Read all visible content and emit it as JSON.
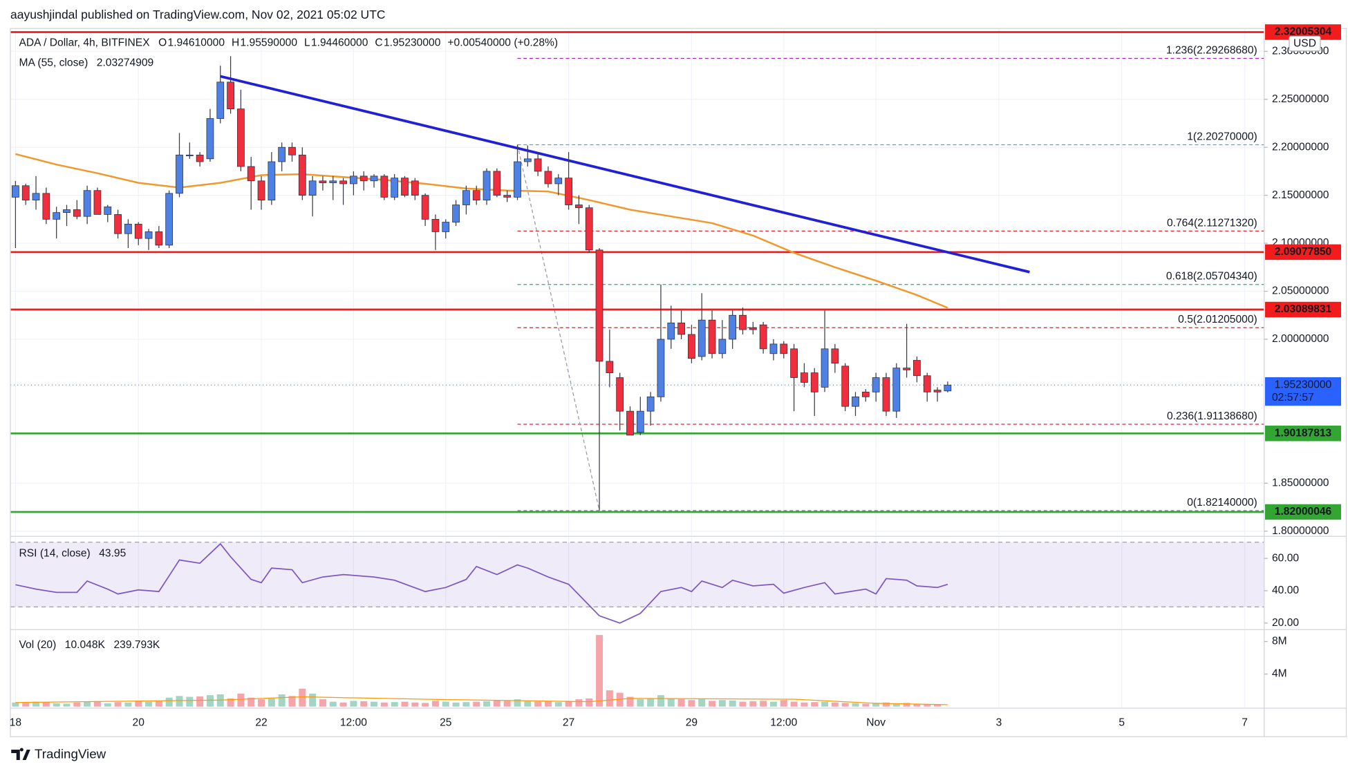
{
  "header": "aayushjindal published on TradingView.com, Nov 02, 2021 05:02 UTC",
  "brand": "TradingView",
  "chart_data": [
    {
      "type": "candlestick",
      "symbol": "ADA / Dollar, 4h, BITFINEX",
      "ohlc_labels": [
        "O",
        "H",
        "L",
        "C"
      ],
      "ohlc_values": [
        "1.94610000",
        "1.95590000",
        "1.94460000",
        "1.95230000"
      ],
      "change": "+0.00540000 (+0.28%)",
      "up_color": "#4f80e3",
      "down_color": "#ef2f3d",
      "ohlc": [
        [
          2.148,
          2.165,
          2.095,
          2.16
        ],
        [
          2.16,
          2.162,
          2.14,
          2.145
        ],
        [
          2.145,
          2.17,
          2.135,
          2.152
        ],
        [
          2.152,
          2.158,
          2.12,
          2.125
        ],
        [
          2.125,
          2.138,
          2.105,
          2.132
        ],
        [
          2.132,
          2.14,
          2.118,
          2.135
        ],
        [
          2.135,
          2.145,
          2.125,
          2.128
        ],
        [
          2.128,
          2.16,
          2.12,
          2.155
        ],
        [
          2.155,
          2.158,
          2.13,
          2.13
        ],
        [
          2.13,
          2.14,
          2.122,
          2.138
        ],
        [
          2.13,
          2.135,
          2.105,
          2.11
        ],
        [
          2.11,
          2.125,
          2.095,
          2.12
        ],
        [
          2.12,
          2.122,
          2.098,
          2.105
        ],
        [
          2.105,
          2.115,
          2.093,
          2.112
        ],
        [
          2.112,
          2.118,
          2.095,
          2.098
        ],
        [
          2.098,
          2.155,
          2.095,
          2.152
        ],
        [
          2.152,
          2.215,
          2.148,
          2.192
        ],
        [
          2.192,
          2.205,
          2.188,
          2.192
        ],
        [
          2.192,
          2.195,
          2.18,
          2.185
        ],
        [
          2.188,
          2.24,
          2.185,
          2.23
        ],
        [
          2.23,
          2.285,
          2.225,
          2.268
        ],
        [
          2.268,
          2.295,
          2.235,
          2.24
        ],
        [
          2.24,
          2.26,
          2.175,
          2.18
        ],
        [
          2.18,
          2.19,
          2.135,
          2.165
        ],
        [
          2.165,
          2.17,
          2.135,
          2.145
        ],
        [
          2.145,
          2.195,
          2.14,
          2.185
        ],
        [
          2.185,
          2.205,
          2.175,
          2.2
        ],
        [
          2.2,
          2.205,
          2.185,
          2.192
        ],
        [
          2.192,
          2.2,
          2.145,
          2.15
        ],
        [
          2.15,
          2.17,
          2.128,
          2.165
        ],
        [
          2.165,
          2.17,
          2.155,
          2.163
        ],
        [
          2.163,
          2.17,
          2.145,
          2.165
        ],
        [
          2.165,
          2.168,
          2.14,
          2.162
        ],
        [
          2.162,
          2.175,
          2.15,
          2.17
        ],
        [
          2.17,
          2.175,
          2.155,
          2.165
        ],
        [
          2.165,
          2.172,
          2.158,
          2.17
        ],
        [
          2.17,
          2.172,
          2.145,
          2.148
        ],
        [
          2.148,
          2.172,
          2.145,
          2.168
        ],
        [
          2.168,
          2.17,
          2.148,
          2.15
        ],
        [
          2.165,
          2.168,
          2.145,
          2.15
        ],
        [
          2.15,
          2.152,
          2.118,
          2.125
        ],
        [
          2.125,
          2.13,
          2.093,
          2.112
        ],
        [
          2.112,
          2.125,
          2.105,
          2.122
        ],
        [
          2.122,
          2.145,
          2.118,
          2.14
        ],
        [
          2.14,
          2.16,
          2.13,
          2.155
        ],
        [
          2.155,
          2.16,
          2.14,
          2.145
        ],
        [
          2.145,
          2.178,
          2.14,
          2.175
        ],
        [
          2.175,
          2.178,
          2.148,
          2.15
        ],
        [
          2.15,
          2.155,
          2.143,
          2.148
        ],
        [
          2.148,
          2.2027,
          2.145,
          2.185
        ],
        [
          2.185,
          2.202,
          2.18,
          2.188
        ],
        [
          2.188,
          2.195,
          2.17,
          2.175
        ],
        [
          2.175,
          2.18,
          2.158,
          2.162
        ],
        [
          2.162,
          2.172,
          2.15,
          2.168
        ],
        [
          2.168,
          2.195,
          2.135,
          2.14
        ],
        [
          2.14,
          2.15,
          2.12,
          2.137
        ],
        [
          2.137,
          2.14,
          2.09,
          2.093
        ],
        [
          2.093,
          2.095,
          1.8214,
          1.977
        ],
        [
          1.977,
          2.01,
          1.95,
          1.965
        ],
        [
          1.96,
          1.965,
          1.905,
          1.925
        ],
        [
          1.925,
          1.93,
          1.9,
          1.9
        ],
        [
          1.903,
          1.94,
          1.9,
          1.925
        ],
        [
          1.925,
          1.945,
          1.91,
          1.94
        ],
        [
          1.94,
          2.057,
          1.935,
          2.0
        ],
        [
          2.0,
          2.035,
          1.99,
          2.017
        ],
        [
          2.017,
          2.03,
          2.0,
          2.005
        ],
        [
          2.005,
          2.015,
          1.975,
          1.98
        ],
        [
          1.982,
          2.048,
          1.978,
          2.02
        ],
        [
          2.02,
          2.03,
          1.98,
          1.985
        ],
        [
          1.985,
          2.02,
          1.98,
          2.0
        ],
        [
          2.0,
          2.03,
          1.99,
          2.025
        ],
        [
          2.025,
          2.033,
          2.005,
          2.01
        ],
        [
          2.012,
          2.018,
          2.005,
          2.01
        ],
        [
          2.015,
          2.018,
          1.985,
          1.99
        ],
        [
          1.985,
          2.0,
          1.978,
          1.995
        ],
        [
          1.995,
          1.998,
          1.98,
          1.985
        ],
        [
          1.99,
          1.995,
          1.925,
          1.96
        ],
        [
          1.965,
          1.975,
          1.95,
          1.955
        ],
        [
          1.965,
          1.97,
          1.92,
          1.945
        ],
        [
          1.95,
          2.03,
          1.945,
          1.99
        ],
        [
          1.99,
          1.995,
          1.965,
          1.975
        ],
        [
          1.972,
          1.975,
          1.925,
          1.93
        ],
        [
          1.93,
          1.945,
          1.92,
          1.94
        ],
        [
          1.945,
          1.948,
          1.935,
          1.94
        ],
        [
          1.945,
          1.965,
          1.935,
          1.96
        ],
        [
          1.96,
          1.965,
          1.92,
          1.925
        ],
        [
          1.925,
          1.975,
          1.918,
          1.97
        ],
        [
          1.97,
          2.016,
          1.96,
          1.968
        ],
        [
          1.978,
          1.982,
          1.955,
          1.962
        ],
        [
          1.962,
          1.965,
          1.935,
          1.945
        ],
        [
          1.947,
          1.95,
          1.935,
          1.945
        ],
        [
          1.9461,
          1.9559,
          1.9446,
          1.9523
        ]
      ],
      "ma": {
        "name": "MA (55, close)",
        "label": "2.03274909",
        "color": "#f0982c",
        "x": [
          0,
          4,
          8,
          12,
          16,
          20,
          24,
          28,
          32,
          36,
          40,
          44,
          48,
          52,
          56,
          60,
          64,
          68,
          72,
          76,
          80,
          84,
          88,
          91
        ],
        "values": [
          2.193,
          2.182,
          2.173,
          2.163,
          2.158,
          2.163,
          2.171,
          2.172,
          2.169,
          2.166,
          2.162,
          2.157,
          2.155,
          2.154,
          2.145,
          2.135,
          2.128,
          2.121,
          2.108,
          2.09,
          2.075,
          2.061,
          2.046,
          2.03274909
        ]
      },
      "trendline": {
        "x": [
          20,
          99
        ],
        "values": [
          2.274,
          2.07
        ],
        "color": "#2020d6"
      },
      "levels": [
        {
          "value": 2.32005304,
          "label": "2.32005304",
          "color": "#f21c1c"
        },
        {
          "value": 2.0907785,
          "label": "2.09077850",
          "color": "#f21c1c"
        },
        {
          "value": 2.03089831,
          "label": "2.03089831",
          "color": "#f21c1c"
        },
        {
          "value": 1.90187813,
          "label": "1.90187813",
          "color": "#33a532"
        },
        {
          "value": 1.82000046,
          "label": "1.82000046",
          "color": "#33a532"
        }
      ],
      "fib": {
        "anchor_x": [
          49,
          57
        ],
        "levels": [
          {
            "value": 2.2926868,
            "label": "1.236(2.29268680)",
            "color": "#9c27b0"
          },
          {
            "value": 2.2027,
            "label": "1(2.20270000)",
            "color": "#4fa3d9"
          },
          {
            "value": 2.1127132,
            "label": "0.764(2.11271320)",
            "color": "#e5232d"
          },
          {
            "value": 2.0570434,
            "label": "0.618(2.05704340)",
            "color": "#22b07d"
          },
          {
            "value": 2.01205,
            "label": "0.5(2.01205000)",
            "color": "#a33b3b"
          },
          {
            "value": 1.9113868,
            "label": "0.236(1.91138680)",
            "color": "#e5232d"
          },
          {
            "value": 1.8214,
            "label": "0(1.82140000)",
            "color": "#787b86"
          }
        ]
      },
      "last": {
        "value": 1.9523,
        "label": "1.95230000",
        "countdown": "02:57:57",
        "color": "#2962ff"
      },
      "currency": "USD",
      "xlim": [
        -0.5,
        121.9
      ],
      "ylim": [
        1.7955,
        2.3238
      ],
      "yticks": [
        {
          "value": 2.3,
          "label": "2.30000000"
        },
        {
          "value": 2.25,
          "label": "2.25000000"
        },
        {
          "value": 2.2,
          "label": "2.20000000"
        },
        {
          "value": 2.15,
          "label": "2.15000000"
        },
        {
          "value": 2.1,
          "label": "2.10000000"
        },
        {
          "value": 2.05,
          "label": "2.05000000"
        },
        {
          "value": 2.0,
          "label": "2.00000000"
        },
        {
          "value": 1.85,
          "label": "1.85000000"
        },
        {
          "value": 1.8,
          "label": "1.80000000"
        }
      ],
      "grid": true
    },
    {
      "type": "line",
      "name": "RSI (14, close)",
      "color": "#7e57c2",
      "band": [
        30,
        70
      ],
      "x": [
        0,
        2,
        4,
        6,
        7,
        9,
        10,
        12,
        14,
        16,
        18,
        20,
        21,
        23,
        24,
        25,
        27,
        28,
        30,
        32,
        35,
        37,
        40,
        42,
        44,
        45,
        47,
        49,
        50,
        52,
        54,
        57,
        59,
        61,
        63,
        65,
        66,
        67,
        69,
        70,
        72,
        74,
        75,
        77,
        79,
        80,
        83,
        84,
        85,
        87,
        88,
        90,
        91
      ],
      "values": [
        43.7,
        41,
        39,
        39,
        46,
        41,
        38,
        40.5,
        39.5,
        59,
        57,
        69,
        61,
        47,
        45,
        54,
        53,
        45,
        48.5,
        50,
        48.5,
        46.5,
        39.5,
        42,
        47,
        55,
        50,
        56,
        54,
        48.5,
        44,
        24.5,
        20,
        26,
        39.5,
        42,
        39.5,
        46,
        42,
        46.5,
        43,
        44,
        38.5,
        42,
        45,
        38,
        41,
        38,
        47.5,
        46.5,
        43,
        42,
        43.95
      ],
      "xlim": [
        -0.5,
        121.9
      ],
      "ylim": [
        16.5,
        73.1
      ],
      "yticks": [
        {
          "value": 60,
          "label": "60.00"
        },
        {
          "value": 40,
          "label": "40.00"
        },
        {
          "value": 20,
          "label": "20.00"
        }
      ]
    },
    {
      "type": "bar",
      "name": "Vol (20)",
      "legend_values": [
        "10.048K",
        "239.793K"
      ],
      "up_color": "#a3d5c4",
      "down_color": "#f5a5aa",
      "values": [
        500000,
        450000,
        600000,
        550000,
        400000,
        350000,
        500000,
        650000,
        600000,
        400000,
        550000,
        500000,
        700000,
        600000,
        650000,
        1100000,
        1300000,
        1200000,
        1250000,
        1400000,
        1500000,
        1000000,
        1600000,
        1100000,
        900000,
        1000000,
        1500000,
        1300000,
        2200000,
        1600000,
        900000,
        600000,
        500000,
        700000,
        650000,
        600000,
        500000,
        550000,
        600000,
        500000,
        450000,
        700000,
        600000,
        500000,
        550000,
        600000,
        650000,
        800000,
        700000,
        900000,
        700000,
        600000,
        650000,
        550000,
        700000,
        900000,
        1000000,
        8800000,
        2000000,
        1700000,
        1200000,
        900000,
        1000000,
        1400000,
        1000000,
        900000,
        800000,
        900000,
        700000,
        800000,
        750000,
        600000,
        650000,
        700000,
        600000,
        800000,
        600000,
        500000,
        550000,
        600000,
        500000,
        450000,
        400000,
        350000,
        450000,
        500000,
        400000,
        450000,
        350000,
        300000,
        250000,
        10048
      ],
      "ma": {
        "color": "#ff9800",
        "x": [
          0,
          20,
          28,
          40,
          56,
          60,
          76,
          84,
          91
        ],
        "values": [
          500000,
          800000,
          1200000,
          900000,
          600000,
          1000000,
          900000,
          400000,
          239793
        ]
      },
      "xlim": [
        -0.5,
        121.9
      ],
      "ylim": [
        -200000,
        9360000
      ],
      "yticks": [
        {
          "value": 4000000,
          "label": "4M"
        },
        {
          "value": 8000000,
          "label": "8M"
        }
      ],
      "xticks": [
        {
          "value": 0,
          "label": "18"
        },
        {
          "value": 12,
          "label": "20"
        },
        {
          "value": 24,
          "label": "22"
        },
        {
          "value": 33,
          "label": "12:00"
        },
        {
          "value": 42,
          "label": "25"
        },
        {
          "value": 54,
          "label": "27"
        },
        {
          "value": 66,
          "label": "29"
        },
        {
          "value": 75,
          "label": "12:00"
        },
        {
          "value": 84,
          "label": "Nov"
        },
        {
          "value": 96,
          "label": "3"
        },
        {
          "value": 108,
          "label": "5"
        },
        {
          "value": 120,
          "label": "7"
        }
      ]
    }
  ]
}
